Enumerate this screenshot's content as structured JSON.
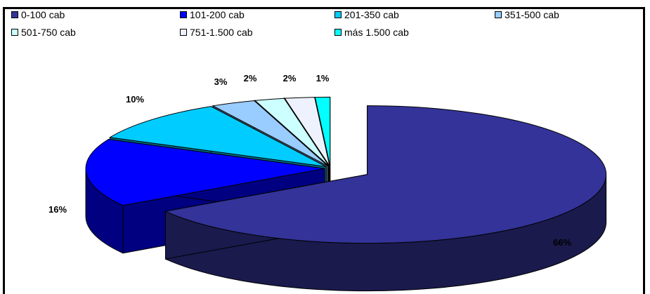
{
  "chart_data": {
    "type": "pie",
    "style": "3d-exploded",
    "title": "",
    "legend_position": "top",
    "categories": [
      "0-100 cab",
      "101-200 cab",
      "201-350 cab",
      "351-500 cab",
      "501-750 cab",
      "751-1.500 cab",
      "más 1.500 cab"
    ],
    "values": [
      66,
      16,
      10,
      3,
      2,
      2,
      1
    ],
    "value_labels": [
      "66%",
      "16%",
      "10%",
      "3%",
      "2%",
      "2%",
      "1%"
    ],
    "colors": [
      "#333399",
      "#0000ff",
      "#00ccff",
      "#99ccff",
      "#ccffff",
      "#eef2ff",
      "#00ffff"
    ],
    "side_colors": [
      "#1a1a4d",
      "#000080",
      "#006b80",
      "#4d6680",
      "#668080",
      "#6c6f80",
      "#008080"
    ]
  }
}
